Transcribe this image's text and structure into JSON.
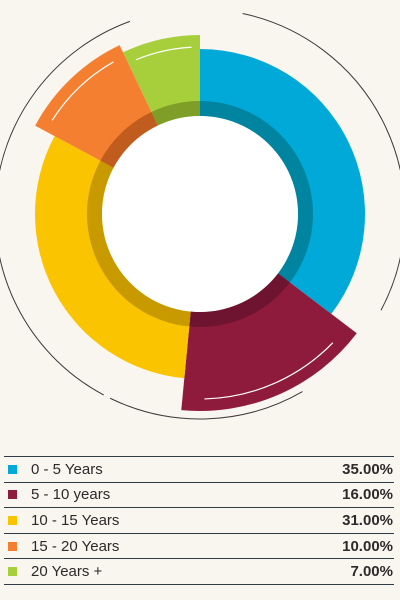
{
  "chart_data": {
    "type": "pie",
    "style": "donut",
    "title": "",
    "legend_position": "bottom",
    "slices": [
      {
        "label": "0 - 5 Years",
        "value": 35.0,
        "value_text": "35.00%",
        "color": "#00a9d8",
        "inner_color": "#00849f"
      },
      {
        "label": "5 - 10 years",
        "value": 16.0,
        "value_text": "16.00%",
        "color": "#8e1a3c",
        "inner_color": "#6f1430"
      },
      {
        "label": "10 - 15 Years",
        "value": 31.0,
        "value_text": "31.00%",
        "color": "#fbc400",
        "inner_color": "#c89a00"
      },
      {
        "label": "15 - 20 Years",
        "value": 10.0,
        "value_text": "10.00%",
        "color": "#f47f30",
        "inner_color": "#c05c1d"
      },
      {
        "label": "20 Years +",
        "value": 7.0,
        "value_text": "7.00%",
        "color": "#a7cf3b",
        "inner_color": "#7f9e28"
      }
    ]
  }
}
